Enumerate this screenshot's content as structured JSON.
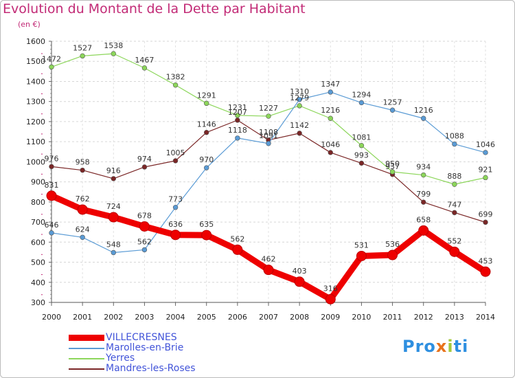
{
  "title": "Evolution du Montant de la Dette par Habitant",
  "unit_label": "(en €)",
  "logo_text": "Proxiti",
  "chart_data": {
    "type": "line",
    "title": "Evolution du Montant de la Dette par Habitant",
    "subtitle": "(en €)",
    "xlabel": "",
    "ylabel": "",
    "x": [
      "2000",
      "2001",
      "2002",
      "2003",
      "2004",
      "2005",
      "2006",
      "2007",
      "2008",
      "2009",
      "2010",
      "2011",
      "2012",
      "2013",
      "2014"
    ],
    "ylim": [
      300,
      1600
    ],
    "yticks": [
      "300",
      "400",
      "500",
      "600",
      "700",
      "800",
      "900",
      "1000",
      "1100",
      "1200",
      "1300",
      "1400",
      "1500",
      "1600"
    ],
    "grid": "horizontal dashed",
    "legend_position": "bottom-left",
    "series": [
      {
        "name": "VILLECRESNES",
        "color": "#ee0000",
        "emphasis": "bold",
        "values": [
          831,
          762,
          724,
          678,
          636,
          635,
          562,
          462,
          403,
          316,
          531,
          536,
          658,
          552,
          453
        ]
      },
      {
        "name": "Marolles-en-Brie",
        "color": "#5a9bd5",
        "emphasis": "normal",
        "values": [
          646,
          624,
          548,
          562,
          773,
          970,
          1118,
          1091,
          1310,
          1347,
          1294,
          1257,
          1216,
          1088,
          1046
        ]
      },
      {
        "name": "Yerres",
        "color": "#8cd65a",
        "emphasis": "normal",
        "values": [
          1472,
          1527,
          1538,
          1467,
          1382,
          1291,
          1231,
          1227,
          1279,
          1216,
          1081,
          950,
          934,
          888,
          921
        ]
      },
      {
        "name": "Mandres-les-Roses",
        "color": "#7a2626",
        "emphasis": "normal",
        "values": [
          976,
          958,
          916,
          974,
          1005,
          1146,
          1207,
          1108,
          1142,
          1046,
          993,
          937,
          799,
          747,
          699
        ]
      }
    ]
  }
}
